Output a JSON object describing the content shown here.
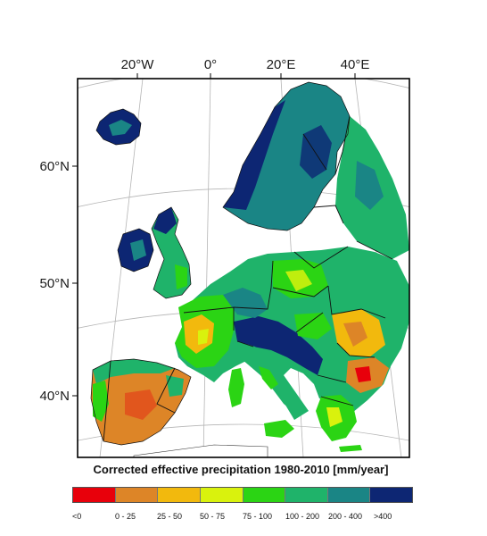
{
  "map": {
    "longitude_ticks": [
      "20°W",
      "0°",
      "20°E",
      "40°E"
    ],
    "latitude_ticks": [
      "60°N",
      "50°N",
      "40°N"
    ]
  },
  "legend": {
    "title": "Corrected effective precipitation 1980-2010 [mm/year]",
    "classes": [
      {
        "label": "<0",
        "color": "#e8000b"
      },
      {
        "label": "0 - 25",
        "color": "#dd8527"
      },
      {
        "label": "25 - 50",
        "color": "#f2b90d"
      },
      {
        "label": "50 - 75",
        "color": "#d9f20d"
      },
      {
        "label": "75 - 100",
        "color": "#2bd414"
      },
      {
        "label": "100 - 200",
        "color": "#1fb36a"
      },
      {
        "label": "200 - 400",
        "color": "#1a8585"
      },
      {
        "label": ">400",
        "color": "#0d2673"
      }
    ]
  }
}
